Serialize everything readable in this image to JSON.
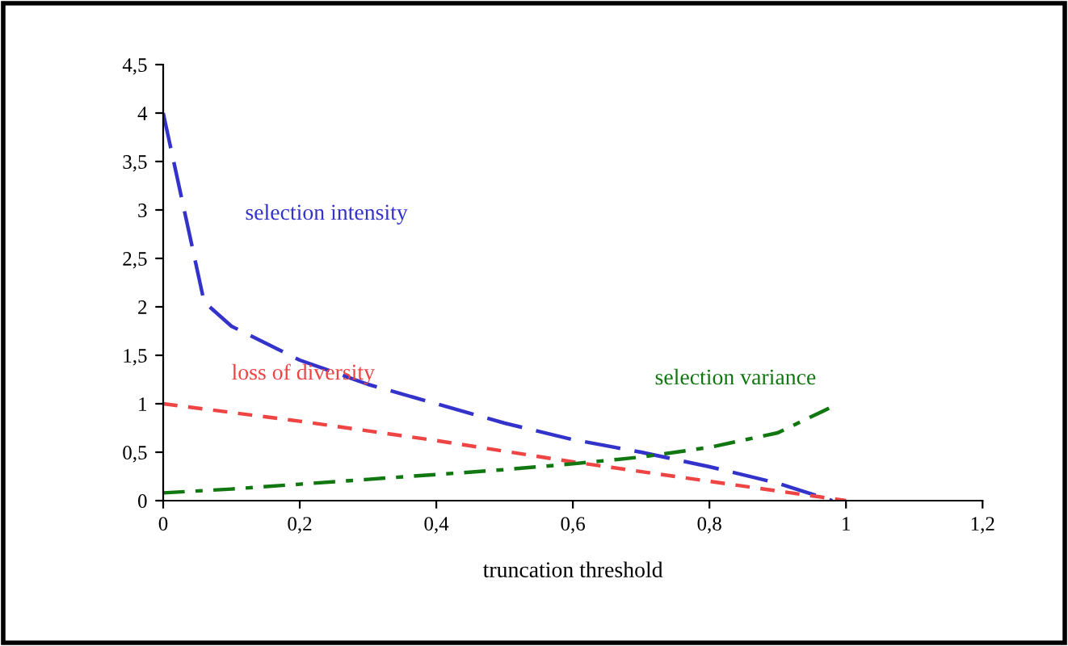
{
  "chart_data": {
    "type": "line",
    "xlabel": "truncation threshold",
    "xlim": [
      0,
      1.2
    ],
    "xticks": [
      0,
      {
        "value": 0.2,
        "label": "0,2"
      },
      {
        "value": 0.4,
        "label": "0,4"
      },
      {
        "value": 0.6,
        "label": "0,6"
      },
      {
        "value": 0.8,
        "label": "0,8"
      },
      1,
      {
        "value": 1.2,
        "label": "1,2"
      }
    ],
    "ylim": [
      0,
      4.5
    ],
    "yticks": [
      0,
      {
        "value": 0.5,
        "label": "0,5"
      },
      1,
      {
        "value": 1.5,
        "label": "1,5"
      },
      2,
      {
        "value": 2.5,
        "label": "2,5"
      },
      3,
      {
        "value": 3.5,
        "label": "3,5"
      },
      4,
      {
        "value": 4.5,
        "label": "4,5"
      }
    ],
    "grid": false,
    "legend": false,
    "series": [
      {
        "name": "selection intensity",
        "color": "#3333cc",
        "line_style": "dashed",
        "x": [
          0,
          0.06,
          0.1,
          0.2,
          0.3,
          0.4,
          0.5,
          0.6,
          0.7,
          0.8,
          0.9,
          0.98
        ],
        "values": [
          4,
          2.05,
          1.8,
          1.45,
          1.2,
          1.0,
          0.8,
          0.63,
          0.5,
          0.35,
          0.18,
          0
        ]
      },
      {
        "name": "loss of diversity",
        "color": "#ee4444",
        "line_style": "dotted",
        "x": [
          0,
          0.2,
          0.4,
          0.6,
          0.8,
          0.9,
          1
        ],
        "values": [
          1,
          0.82,
          0.62,
          0.4,
          0.2,
          0.1,
          0
        ]
      },
      {
        "name": "selection variance",
        "color": "#117711",
        "line_style": "dashdot",
        "x": [
          0,
          0.1,
          0.2,
          0.3,
          0.4,
          0.5,
          0.6,
          0.7,
          0.8,
          0.9,
          0.98
        ],
        "values": [
          0.08,
          0.12,
          0.17,
          0.22,
          0.27,
          0.32,
          0.38,
          0.45,
          0.55,
          0.7,
          0.97
        ]
      }
    ]
  }
}
